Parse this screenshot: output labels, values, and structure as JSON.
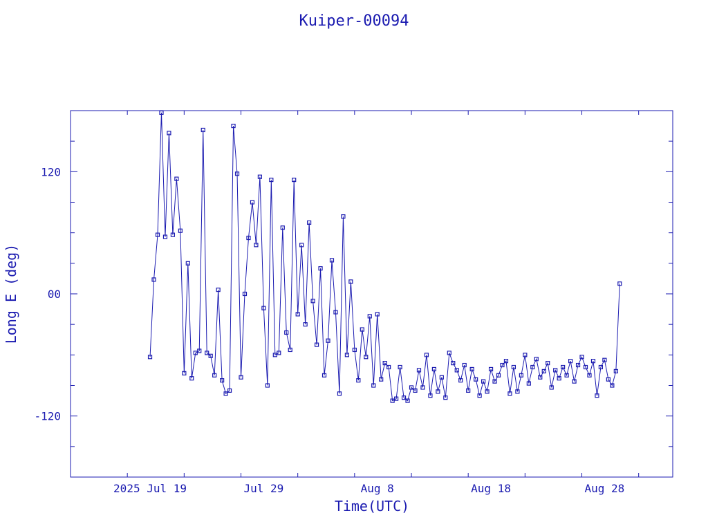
{
  "chart_data": {
    "type": "scatter",
    "title": "Kuiper-00094",
    "xlabel": "Time(UTC)",
    "ylabel": "Long E (deg)",
    "x_unit": "days",
    "xlim": [
      "2025-07-12",
      "2025-09-03"
    ],
    "ylim": [
      -180,
      180
    ],
    "x_ticks": [
      {
        "date": "2025-07-19",
        "label": "2025 Jul 19"
      },
      {
        "date": "2025-07-29",
        "label": "Jul 29"
      },
      {
        "date": "2025-08-08",
        "label": "Aug  8"
      },
      {
        "date": "2025-08-18",
        "label": "Aug 18"
      },
      {
        "date": "2025-08-28",
        "label": "Aug 28"
      }
    ],
    "y_ticks": [
      {
        "value": 120,
        "label": "120"
      },
      {
        "value": 0,
        "label": "00"
      },
      {
        "value": -120,
        "label": "-120"
      }
    ],
    "color": "#1a1ab0",
    "grid": false,
    "marker": "square",
    "series": [
      {
        "x": [
          "2025-07-19 00:00",
          "2025-07-19 08:00",
          "2025-07-19 16:00",
          "2025-07-20 00:00",
          "2025-07-20 08:00",
          "2025-07-20 16:00",
          "2025-07-21 00:00",
          "2025-07-21 08:00",
          "2025-07-21 16:00",
          "2025-07-22 00:00",
          "2025-07-22 08:00",
          "2025-07-22 16:00",
          "2025-07-23 00:00",
          "2025-07-23 08:00",
          "2025-07-23 16:00",
          "2025-07-24 00:00",
          "2025-07-24 08:00",
          "2025-07-24 16:00",
          "2025-07-25 00:00",
          "2025-07-25 08:00",
          "2025-07-25 16:00",
          "2025-07-26 00:00",
          "2025-07-26 08:00",
          "2025-07-26 16:00",
          "2025-07-27 00:00",
          "2025-07-27 08:00",
          "2025-07-27 16:00",
          "2025-07-28 00:00",
          "2025-07-28 08:00",
          "2025-07-28 16:00",
          "2025-07-29 00:00",
          "2025-07-29 08:00",
          "2025-07-29 16:00",
          "2025-07-30 00:00",
          "2025-07-30 08:00",
          "2025-07-30 16:00",
          "2025-07-31 00:00",
          "2025-07-31 08:00",
          "2025-07-31 16:00",
          "2025-08-01 00:00",
          "2025-08-01 08:00",
          "2025-08-01 16:00",
          "2025-08-02 00:00",
          "2025-08-02 08:00",
          "2025-08-02 16:00",
          "2025-08-03 00:00",
          "2025-08-03 08:00",
          "2025-08-03 16:00",
          "2025-08-04 00:00",
          "2025-08-04 08:00",
          "2025-08-04 16:00",
          "2025-08-05 00:00",
          "2025-08-05 08:00",
          "2025-08-05 16:00",
          "2025-08-06 00:00",
          "2025-08-06 08:00",
          "2025-08-06 16:00",
          "2025-08-07 00:00",
          "2025-08-07 08:00",
          "2025-08-07 16:00",
          "2025-08-08 00:00",
          "2025-08-08 08:00",
          "2025-08-08 16:00",
          "2025-08-09 00:00",
          "2025-08-09 08:00",
          "2025-08-09 16:00",
          "2025-08-10 00:00",
          "2025-08-10 08:00",
          "2025-08-10 16:00",
          "2025-08-11 00:00",
          "2025-08-11 08:00",
          "2025-08-11 16:00",
          "2025-08-12 00:00",
          "2025-08-12 08:00",
          "2025-08-12 16:00",
          "2025-08-13 00:00",
          "2025-08-13 08:00",
          "2025-08-13 16:00",
          "2025-08-14 00:00",
          "2025-08-14 08:00",
          "2025-08-14 16:00",
          "2025-08-15 00:00",
          "2025-08-15 08:00",
          "2025-08-15 16:00",
          "2025-08-16 00:00",
          "2025-08-16 08:00",
          "2025-08-16 16:00",
          "2025-08-17 00:00",
          "2025-08-17 08:00",
          "2025-08-17 16:00",
          "2025-08-18 00:00",
          "2025-08-18 08:00",
          "2025-08-18 16:00",
          "2025-08-19 00:00",
          "2025-08-19 08:00",
          "2025-08-19 16:00",
          "2025-08-20 00:00",
          "2025-08-20 08:00",
          "2025-08-20 16:00",
          "2025-08-21 00:00",
          "2025-08-21 08:00",
          "2025-08-21 16:00",
          "2025-08-22 00:00",
          "2025-08-22 08:00",
          "2025-08-22 16:00",
          "2025-08-23 00:00",
          "2025-08-23 08:00",
          "2025-08-23 16:00",
          "2025-08-24 00:00",
          "2025-08-24 08:00",
          "2025-08-24 16:00",
          "2025-08-25 00:00",
          "2025-08-25 08:00",
          "2025-08-25 16:00",
          "2025-08-26 00:00",
          "2025-08-26 08:00",
          "2025-08-26 16:00",
          "2025-08-27 00:00",
          "2025-08-27 08:00",
          "2025-08-27 16:00",
          "2025-08-28 00:00",
          "2025-08-28 08:00",
          "2025-08-28 16:00",
          "2025-08-29 00:00",
          "2025-08-29 08:00"
        ],
        "y": [
          -62,
          14,
          58,
          178,
          56,
          158,
          58,
          113,
          62,
          -78,
          30,
          -83,
          -58,
          -56,
          161,
          -58,
          -61,
          -80,
          4,
          -85,
          -98,
          -95,
          165,
          118,
          -82,
          0,
          55,
          90,
          48,
          115,
          -14,
          -90,
          112,
          -60,
          -58,
          65,
          -38,
          -55,
          112,
          -20,
          48,
          -30,
          70,
          -7,
          -50,
          25,
          -80,
          -46,
          33,
          -18,
          -98,
          76,
          -60,
          12,
          -55,
          -85,
          -35,
          -62,
          -22,
          -90,
          -20,
          -84,
          -68,
          -72,
          -105,
          -103,
          -72,
          -102,
          -105,
          -92,
          -95,
          -75,
          -92,
          -60,
          -100,
          -74,
          -96,
          -82,
          -102,
          -58,
          -68,
          -75,
          -85,
          -70,
          -95,
          -74,
          -84,
          -100,
          -86,
          -96,
          -74,
          -86,
          -80,
          -70,
          -66,
          -98,
          -72,
          -96,
          -80,
          -60,
          -88,
          -72,
          -64,
          -82,
          -76,
          -68,
          -92,
          -75,
          -83,
          -72,
          -80,
          -66,
          -86,
          -70,
          -62,
          -72,
          -80,
          -66,
          -100,
          -72,
          -65,
          -84,
          -90,
          -76,
          10
        ],
        "note": ""
      }
    ]
  }
}
